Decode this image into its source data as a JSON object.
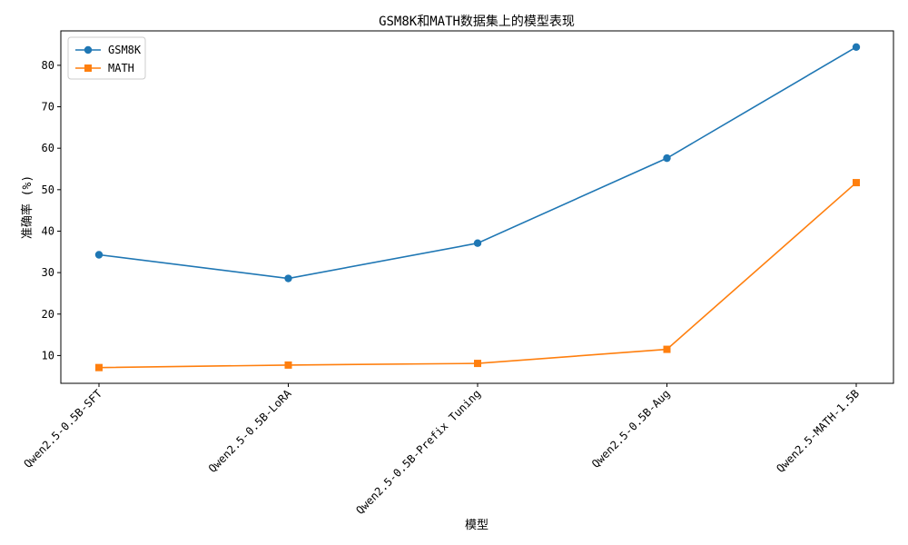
{
  "chart_data": {
    "type": "line",
    "title": "GSM8K和MATH数据集上的模型表现",
    "xlabel": "模型",
    "ylabel": "准确率 (%)",
    "categories": [
      "Qwen2.5-0.5B-SFT",
      "Qwen2.5-0.5B-LoRA",
      "Qwen2.5-0.5B-Prefix Tuning",
      "Qwen2.5-0.5B-Aug",
      "Qwen2.5-MATH-1.5B"
    ],
    "series": [
      {
        "name": "GSM8K",
        "values": [
          34.3,
          28.6,
          37.1,
          57.6,
          84.4
        ],
        "color": "#1f77b4",
        "marker": "circle"
      },
      {
        "name": "MATH",
        "values": [
          7.1,
          7.7,
          8.1,
          11.5,
          51.7
        ],
        "color": "#ff7f0e",
        "marker": "square"
      }
    ],
    "ylim": [
      3.3,
      88.3
    ],
    "yticks": [
      10,
      20,
      30,
      40,
      50,
      60,
      70,
      80
    ],
    "grid": false,
    "legend_position": "top-left"
  }
}
